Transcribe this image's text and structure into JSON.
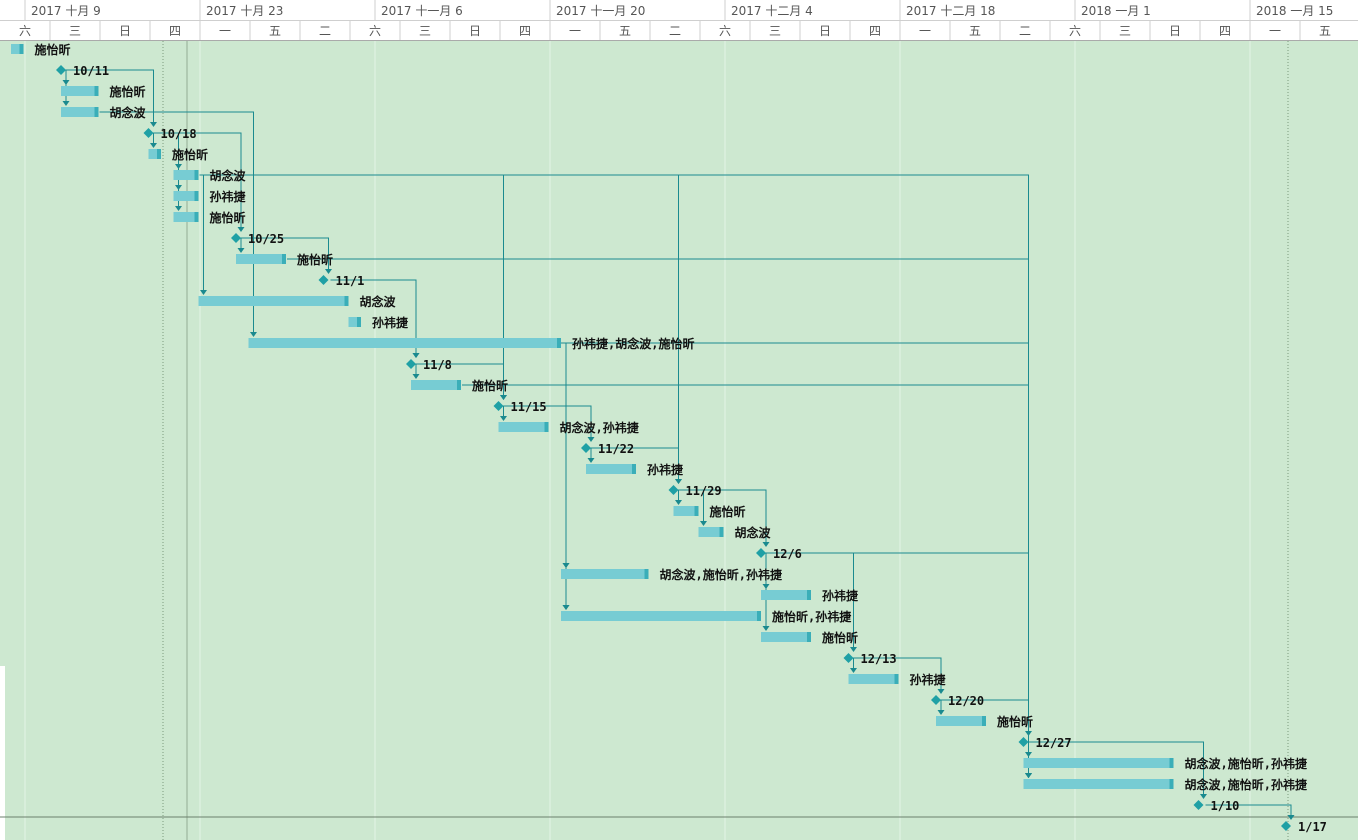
{
  "chart_data": {
    "type": "gantt",
    "colors": {
      "background": "#cde8d0",
      "bar": "#77ccd3",
      "bar_end": "#3aaeb8",
      "milestone": "#1fa0a5",
      "link": "#1a8a8f"
    },
    "week_headers": [
      "2017 十月 9",
      "2017 十月 23",
      "2017 十一月 6",
      "2017 十一月 20",
      "2017 十二月 4",
      "2017 十二月 18",
      "2018 一月 1",
      "2018 一月 15"
    ],
    "day_headers": [
      "六",
      "三",
      "日",
      "四",
      "一",
      "五",
      "二",
      "六",
      "三",
      "日",
      "四",
      "一",
      "五",
      "二",
      "六",
      "三",
      "日",
      "四",
      "一",
      "五",
      "二",
      "六",
      "三",
      "日",
      "四",
      "一",
      "五"
    ],
    "rows": [
      {
        "type": "task",
        "start": "2017-10-07",
        "end": "2017-10-08",
        "label": "施怡昕"
      },
      {
        "type": "milestone",
        "date": "2017-10-11",
        "label": "10/11"
      },
      {
        "type": "task",
        "start": "2017-10-11",
        "end": "2017-10-14",
        "label": "施怡昕"
      },
      {
        "type": "task",
        "start": "2017-10-11",
        "end": "2017-10-14",
        "label": "胡念波"
      },
      {
        "type": "milestone",
        "date": "2017-10-18",
        "label": "10/18"
      },
      {
        "type": "task",
        "start": "2017-10-18",
        "end": "2017-10-19",
        "label": "施怡昕"
      },
      {
        "type": "task",
        "start": "2017-10-20",
        "end": "2017-10-22",
        "label": "胡念波"
      },
      {
        "type": "task",
        "start": "2017-10-20",
        "end": "2017-10-22",
        "label": "孙祎捷"
      },
      {
        "type": "task",
        "start": "2017-10-20",
        "end": "2017-10-22",
        "label": "施怡昕"
      },
      {
        "type": "milestone",
        "date": "2017-10-25",
        "label": "10/25"
      },
      {
        "type": "task",
        "start": "2017-10-25",
        "end": "2017-10-29",
        "label": "施怡昕"
      },
      {
        "type": "milestone",
        "date": "2017-11-01",
        "label": "11/1"
      },
      {
        "type": "task",
        "start": "2017-10-22",
        "end": "2017-11-03",
        "label": "胡念波"
      },
      {
        "type": "task",
        "start": "2017-11-03",
        "end": "2017-11-04",
        "label": "孙祎捷"
      },
      {
        "type": "task",
        "start": "2017-10-26",
        "end": "2017-11-20",
        "label": "孙祎捷,胡念波,施怡昕"
      },
      {
        "type": "milestone",
        "date": "2017-11-08",
        "label": "11/8"
      },
      {
        "type": "task",
        "start": "2017-11-08",
        "end": "2017-11-12",
        "label": "施怡昕"
      },
      {
        "type": "milestone",
        "date": "2017-11-15",
        "label": "11/15"
      },
      {
        "type": "task",
        "start": "2017-11-15",
        "end": "2017-11-19",
        "label": "胡念波,孙祎捷"
      },
      {
        "type": "milestone",
        "date": "2017-11-22",
        "label": "11/22"
      },
      {
        "type": "task",
        "start": "2017-11-22",
        "end": "2017-11-26",
        "label": "孙祎捷"
      },
      {
        "type": "milestone",
        "date": "2017-11-29",
        "label": "11/29"
      },
      {
        "type": "task",
        "start": "2017-11-29",
        "end": "2017-12-01",
        "label": "施怡昕"
      },
      {
        "type": "task",
        "start": "2017-12-01",
        "end": "2017-12-03",
        "label": "胡念波"
      },
      {
        "type": "milestone",
        "date": "2017-12-06",
        "label": "12/6"
      },
      {
        "type": "task",
        "start": "2017-11-20",
        "end": "2017-11-27",
        "label": "胡念波,施怡昕,孙祎捷"
      },
      {
        "type": "task",
        "start": "2017-12-06",
        "end": "2017-12-10",
        "label": "孙祎捷"
      },
      {
        "type": "task",
        "start": "2017-11-20",
        "end": "2017-12-06",
        "label": "施怡昕,孙祎捷"
      },
      {
        "type": "task",
        "start": "2017-12-06",
        "end": "2017-12-10",
        "label": "施怡昕"
      },
      {
        "type": "milestone",
        "date": "2017-12-13",
        "label": "12/13"
      },
      {
        "type": "task",
        "start": "2017-12-13",
        "end": "2017-12-17",
        "label": "孙祎捷"
      },
      {
        "type": "milestone",
        "date": "2017-12-20",
        "label": "12/20"
      },
      {
        "type": "task",
        "start": "2017-12-20",
        "end": "2017-12-24",
        "label": "施怡昕"
      },
      {
        "type": "milestone",
        "date": "2017-12-27",
        "label": "12/27"
      },
      {
        "type": "task",
        "start": "2017-12-27",
        "end": "2018-01-08",
        "label": "胡念波,施怡昕,孙祎捷"
      },
      {
        "type": "task",
        "start": "2017-12-27",
        "end": "2018-01-08",
        "label": "胡念波,施怡昕,孙祎捷"
      },
      {
        "type": "milestone",
        "date": "2018-01-10",
        "label": "1/10"
      },
      {
        "type": "milestone",
        "date": "2018-01-17",
        "label": "1/17"
      }
    ],
    "links": [
      [
        1,
        2
      ],
      [
        1,
        3
      ],
      [
        1,
        4
      ],
      [
        3,
        14
      ],
      [
        4,
        5
      ],
      [
        4,
        6
      ],
      [
        4,
        7
      ],
      [
        4,
        8
      ],
      [
        4,
        9
      ],
      [
        6,
        12
      ],
      [
        6,
        35
      ],
      [
        9,
        10
      ],
      [
        9,
        11
      ],
      [
        10,
        35
      ],
      [
        11,
        15
      ],
      [
        14,
        15
      ],
      [
        14,
        25
      ],
      [
        14,
        27
      ],
      [
        14,
        35
      ],
      [
        15,
        16
      ],
      [
        15,
        17
      ],
      [
        16,
        35
      ],
      [
        17,
        18
      ],
      [
        17,
        19
      ],
      [
        17,
        25
      ],
      [
        17,
        27
      ],
      [
        19,
        20
      ],
      [
        19,
        21
      ],
      [
        21,
        22
      ],
      [
        21,
        23
      ],
      [
        21,
        24
      ],
      [
        6,
        21
      ],
      [
        6,
        17
      ],
      [
        24,
        26
      ],
      [
        24,
        28
      ],
      [
        24,
        29
      ],
      [
        24,
        35
      ],
      [
        29,
        30
      ],
      [
        29,
        31
      ],
      [
        31,
        32
      ],
      [
        31,
        33
      ],
      [
        33,
        34
      ],
      [
        33,
        35
      ],
      [
        33,
        36
      ],
      [
        36,
        37
      ]
    ]
  }
}
